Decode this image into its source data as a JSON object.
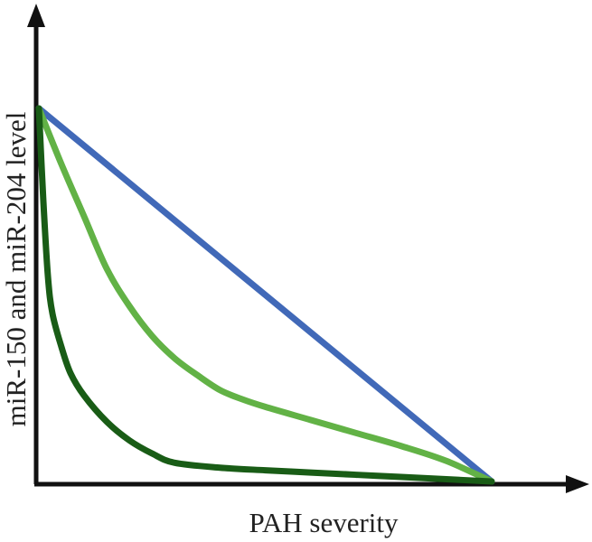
{
  "chart_data": {
    "type": "line",
    "title": "",
    "xlabel": "PAH severity",
    "ylabel": "miR-150 and miR-204 level",
    "xlim": [
      0,
      1
    ],
    "ylim": [
      0,
      1
    ],
    "grid": false,
    "legend": "none",
    "series": [
      {
        "color": "#4169b8",
        "x": [
          0,
          1
        ],
        "y": [
          1,
          0
        ]
      },
      {
        "color": "#62b246",
        "x": [
          0,
          0.05,
          0.1,
          0.15,
          0.2,
          0.25,
          0.3,
          0.35,
          0.4,
          0.45,
          0.5,
          0.6,
          0.7,
          0.8,
          0.9,
          1
        ],
        "y": [
          1,
          0.85,
          0.71,
          0.57,
          0.47,
          0.39,
          0.33,
          0.285,
          0.245,
          0.22,
          0.2,
          0.165,
          0.13,
          0.095,
          0.055,
          0
        ]
      },
      {
        "color": "#195c16",
        "x": [
          0,
          0.01,
          0.02,
          0.03,
          0.05,
          0.07,
          0.1,
          0.15,
          0.2,
          0.25,
          0.3,
          0.4,
          0.5,
          0.6,
          0.7,
          0.8,
          0.9,
          1
        ],
        "y": [
          1,
          0.75,
          0.55,
          0.45,
          0.36,
          0.29,
          0.23,
          0.16,
          0.11,
          0.075,
          0.05,
          0.037,
          0.03,
          0.024,
          0.018,
          0.012,
          0.006,
          0
        ]
      }
    ]
  }
}
